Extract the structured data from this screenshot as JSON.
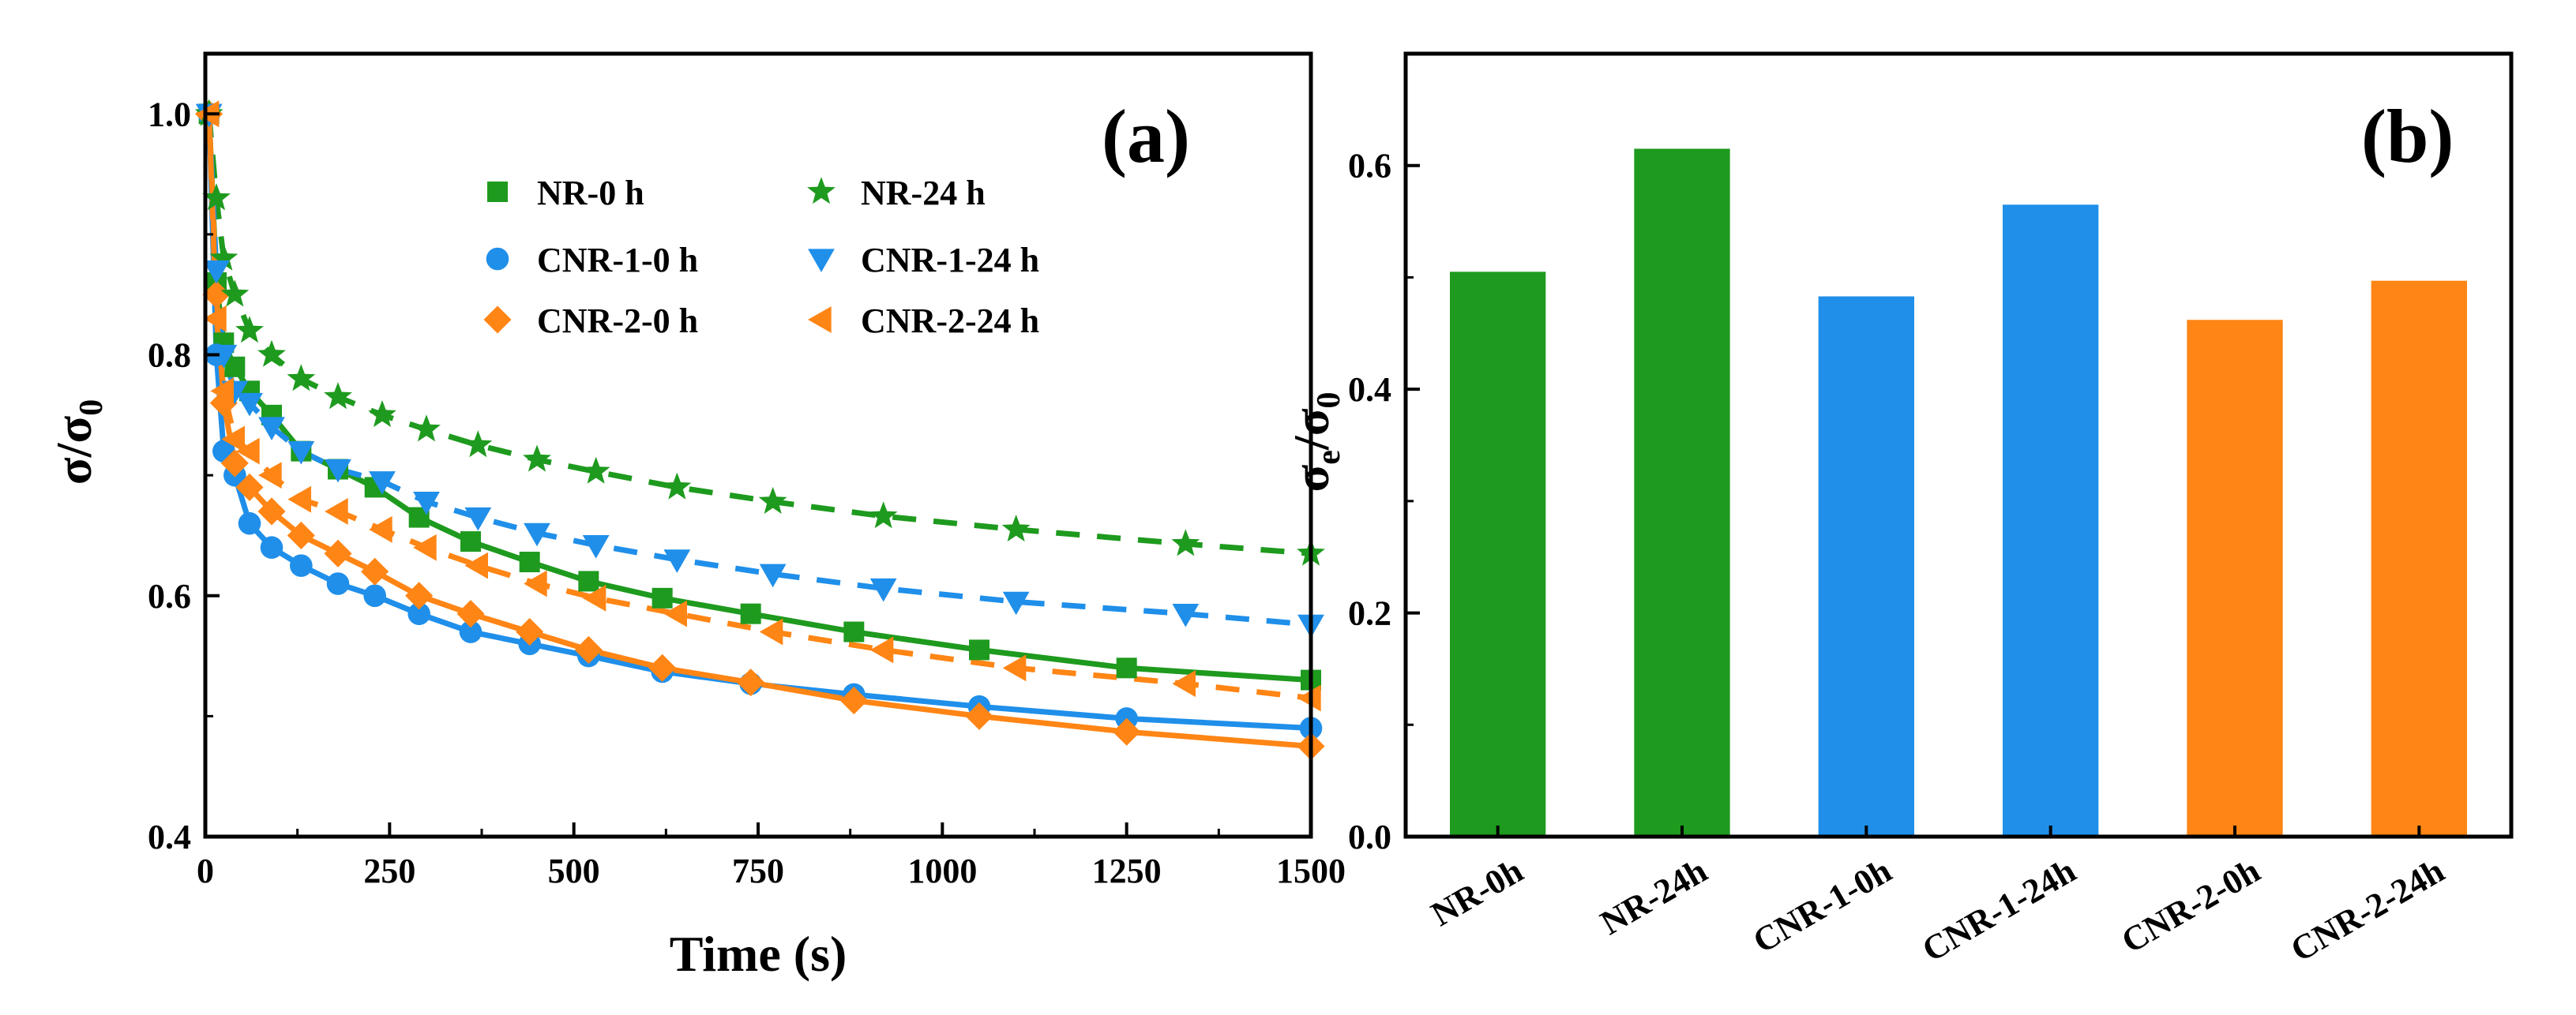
{
  "chart_data": [
    {
      "type": "line",
      "panel_label": "(a)",
      "title": "",
      "xlabel": "Time (s)",
      "ylabel": "σ/σ",
      "ylabel_sub": "0",
      "xlim": [
        0,
        1500
      ],
      "ylim": [
        0.4,
        1.05
      ],
      "xticks": [
        0,
        250,
        500,
        750,
        1000,
        1250,
        1500
      ],
      "yticks": [
        0.4,
        0.6,
        0.8,
        1.0
      ],
      "xtick_labels": [
        "0",
        "250",
        "500",
        "750",
        "1000",
        "1250",
        "1500"
      ],
      "ytick_labels": [
        "0.4",
        "0.6",
        "0.8",
        "1.0"
      ],
      "grid": false,
      "legend_position": "top-right",
      "series": [
        {
          "name": "NR-0 h",
          "color": "#1e9a1e",
          "marker": "square",
          "line": "solid",
          "x": [
            5,
            15,
            25,
            40,
            60,
            90,
            130,
            180,
            230,
            290,
            360,
            440,
            520,
            620,
            740,
            880,
            1050,
            1250,
            1500
          ],
          "y": [
            1.0,
            0.86,
            0.81,
            0.79,
            0.77,
            0.75,
            0.72,
            0.705,
            0.69,
            0.665,
            0.645,
            0.628,
            0.612,
            0.598,
            0.585,
            0.57,
            0.555,
            0.54,
            0.53
          ]
        },
        {
          "name": "CNR-1-0 h",
          "color": "#1f8fea",
          "marker": "circle",
          "line": "solid",
          "x": [
            5,
            15,
            25,
            40,
            60,
            90,
            130,
            180,
            230,
            290,
            360,
            440,
            520,
            620,
            740,
            880,
            1050,
            1250,
            1500
          ],
          "y": [
            1.0,
            0.8,
            0.72,
            0.7,
            0.66,
            0.64,
            0.625,
            0.61,
            0.6,
            0.585,
            0.57,
            0.56,
            0.55,
            0.537,
            0.527,
            0.518,
            0.508,
            0.498,
            0.49
          ]
        },
        {
          "name": "CNR-2-0 h",
          "color": "#ff8515",
          "marker": "diamond",
          "line": "solid",
          "x": [
            5,
            15,
            25,
            40,
            60,
            90,
            130,
            180,
            230,
            290,
            360,
            440,
            520,
            620,
            740,
            880,
            1050,
            1250,
            1500
          ],
          "y": [
            1.0,
            0.85,
            0.76,
            0.71,
            0.69,
            0.67,
            0.65,
            0.635,
            0.62,
            0.6,
            0.585,
            0.57,
            0.555,
            0.54,
            0.528,
            0.513,
            0.5,
            0.487,
            0.475
          ]
        },
        {
          "name": "NR-24 h",
          "color": "#1e9a1e",
          "marker": "star",
          "line": "dashed",
          "x": [
            5,
            15,
            25,
            40,
            60,
            90,
            130,
            180,
            240,
            300,
            370,
            450,
            530,
            640,
            770,
            920,
            1100,
            1330,
            1500
          ],
          "y": [
            1.0,
            0.93,
            0.88,
            0.85,
            0.82,
            0.8,
            0.78,
            0.765,
            0.75,
            0.738,
            0.725,
            0.713,
            0.703,
            0.69,
            0.678,
            0.666,
            0.655,
            0.643,
            0.635
          ]
        },
        {
          "name": "CNR-1-24 h",
          "color": "#1f8fea",
          "marker": "triangle-down",
          "line": "dashed",
          "x": [
            5,
            15,
            25,
            40,
            60,
            90,
            130,
            180,
            240,
            300,
            370,
            450,
            530,
            640,
            770,
            920,
            1100,
            1330,
            1500
          ],
          "y": [
            1.0,
            0.87,
            0.8,
            0.77,
            0.76,
            0.74,
            0.72,
            0.705,
            0.695,
            0.678,
            0.665,
            0.652,
            0.642,
            0.63,
            0.618,
            0.606,
            0.595,
            0.585,
            0.576
          ]
        },
        {
          "name": "CNR-2-24 h",
          "color": "#ff8515",
          "marker": "triangle-left",
          "line": "dashed",
          "x": [
            5,
            15,
            25,
            40,
            60,
            90,
            130,
            180,
            240,
            300,
            370,
            450,
            530,
            640,
            770,
            920,
            1100,
            1330,
            1500
          ],
          "y": [
            1.0,
            0.83,
            0.77,
            0.73,
            0.72,
            0.7,
            0.68,
            0.67,
            0.655,
            0.64,
            0.625,
            0.61,
            0.598,
            0.585,
            0.57,
            0.555,
            0.54,
            0.527,
            0.515
          ]
        }
      ]
    },
    {
      "type": "bar",
      "panel_label": "(b)",
      "title": "",
      "xlabel": "",
      "ylabel": "σ",
      "ylabel_sub1": "e",
      "ylabel_mid": "/σ",
      "ylabel_sub2": "0",
      "ylim": [
        0,
        0.7
      ],
      "yticks": [
        0.0,
        0.2,
        0.4,
        0.6
      ],
      "ytick_labels": [
        "0.0",
        "0.2",
        "0.4",
        "0.6"
      ],
      "grid": false,
      "categories": [
        "NR-0h",
        "NR-24h",
        "CNR-1-0h",
        "CNR-1-24h",
        "CNR-2-0h",
        "CNR-2-24h"
      ],
      "values": [
        0.505,
        0.615,
        0.483,
        0.565,
        0.462,
        0.497
      ],
      "colors": [
        "#1e9a1e",
        "#1e9a1e",
        "#1f8fea",
        "#1f8fea",
        "#ff8515",
        "#ff8515"
      ]
    }
  ]
}
